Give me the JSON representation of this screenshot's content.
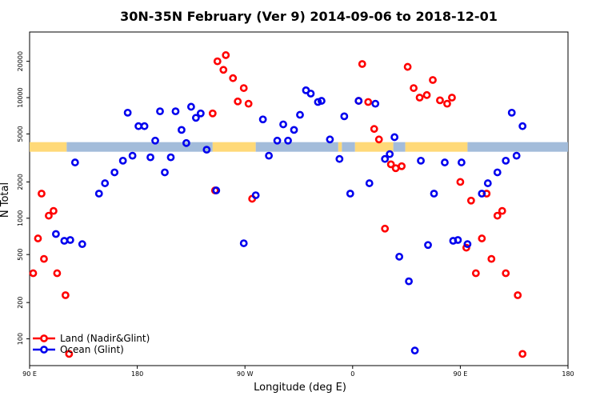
{
  "chart_data": {
    "type": "scatter",
    "title": "30N-35N February (Ver 9)   2014-09-06 to 2018-12-01",
    "xlabel": "Longitude (deg E)",
    "ylabel": "N Total",
    "y_scale": "log",
    "xlim": [
      90,
      540
    ],
    "ylim": [
      60,
      35000
    ],
    "x_ticks": [
      {
        "value": 90,
        "label": "90 E"
      },
      {
        "value": 180,
        "label": "180"
      },
      {
        "value": 270,
        "label": "90 W"
      },
      {
        "value": 360,
        "label": "0"
      },
      {
        "value": 450,
        "label": "90 E"
      },
      {
        "value": 540,
        "label": "180"
      }
    ],
    "y_ticks": [
      {
        "value": 100,
        "label": "100"
      },
      {
        "value": 200,
        "label": "200"
      },
      {
        "value": 500,
        "label": "500"
      },
      {
        "value": 1000,
        "label": "1000"
      },
      {
        "value": 2000,
        "label": "2000"
      },
      {
        "value": 5000,
        "label": "5000"
      },
      {
        "value": 10000,
        "label": "10000"
      },
      {
        "value": 20000,
        "label": "20000"
      }
    ],
    "legend": {
      "position": "bottom-left",
      "entries": [
        {
          "label": "Land (Nadir&Glint)",
          "color": "#ff0000"
        },
        {
          "label": "Ocean (Glint)",
          "color": "#0000ee"
        }
      ]
    },
    "band": {
      "y": 3900,
      "segments": [
        {
          "type": "land",
          "from": 90,
          "to": 121
        },
        {
          "type": "ocean",
          "from": 121,
          "to": 243
        },
        {
          "type": "land",
          "from": 243,
          "to": 279
        },
        {
          "type": "ocean",
          "from": 279,
          "to": 348
        },
        {
          "type": "land",
          "from": 348,
          "to": 351
        },
        {
          "type": "ocean",
          "from": 351,
          "to": 362
        },
        {
          "type": "land",
          "from": 362,
          "to": 394
        },
        {
          "type": "ocean",
          "from": 394,
          "to": 404
        },
        {
          "type": "land",
          "from": 404,
          "to": 456
        },
        {
          "type": "ocean",
          "from": 456,
          "to": 540
        }
      ],
      "colors": {
        "land": "#ffd978",
        "ocean": "#a3bcda"
      }
    },
    "series": [
      {
        "name": "Land (Nadir&Glint)",
        "color": "#ff0000",
        "points": [
          [
            93,
            350
          ],
          [
            97,
            680
          ],
          [
            100,
            1600
          ],
          [
            102,
            460
          ],
          [
            106,
            1050
          ],
          [
            110,
            1150
          ],
          [
            113,
            350
          ],
          [
            120,
            230
          ],
          [
            123,
            75
          ],
          [
            243,
            7400
          ],
          [
            245,
            1700
          ],
          [
            247,
            20000
          ],
          [
            252,
            17000
          ],
          [
            254,
            22500
          ],
          [
            260,
            14500
          ],
          [
            264,
            9300
          ],
          [
            269,
            12000
          ],
          [
            273,
            8900
          ],
          [
            276,
            1450
          ],
          [
            365,
            9400
          ],
          [
            368,
            19000
          ],
          [
            373,
            9200
          ],
          [
            378,
            5500
          ],
          [
            382,
            4500
          ],
          [
            387,
            820
          ],
          [
            392,
            2800
          ],
          [
            396,
            2600
          ],
          [
            401,
            2700
          ],
          [
            406,
            18000
          ],
          [
            411,
            12000
          ],
          [
            416,
            10000
          ],
          [
            422,
            10500
          ],
          [
            427,
            14000
          ],
          [
            433,
            9500
          ],
          [
            439,
            8900
          ],
          [
            443,
            10000
          ],
          [
            450,
            2000
          ],
          [
            455,
            570
          ],
          [
            459,
            1400
          ],
          [
            463,
            350
          ],
          [
            468,
            680
          ],
          [
            472,
            1600
          ],
          [
            476,
            460
          ],
          [
            481,
            1050
          ],
          [
            485,
            1150
          ],
          [
            488,
            350
          ],
          [
            498,
            230
          ],
          [
            502,
            75
          ]
        ]
      },
      {
        "name": "Ocean (Glint)",
        "color": "#0000ee",
        "points": [
          [
            112,
            740
          ],
          [
            119,
            650
          ],
          [
            124,
            660
          ],
          [
            128,
            2900
          ],
          [
            134,
            610
          ],
          [
            148,
            1600
          ],
          [
            153,
            1950
          ],
          [
            161,
            2400
          ],
          [
            168,
            3000
          ],
          [
            172,
            7500
          ],
          [
            176,
            3300
          ],
          [
            181,
            5800
          ],
          [
            186,
            5800
          ],
          [
            191,
            3200
          ],
          [
            195,
            4400
          ],
          [
            199,
            7700
          ],
          [
            203,
            2400
          ],
          [
            208,
            3200
          ],
          [
            212,
            7700
          ],
          [
            217,
            5400
          ],
          [
            221,
            4200
          ],
          [
            225,
            8400
          ],
          [
            229,
            6800
          ],
          [
            233,
            7400
          ],
          [
            238,
            3700
          ],
          [
            246,
            1700
          ],
          [
            269,
            620
          ],
          [
            279,
            1550
          ],
          [
            285,
            6600
          ],
          [
            290,
            3300
          ],
          [
            297,
            4400
          ],
          [
            302,
            6000
          ],
          [
            306,
            4400
          ],
          [
            311,
            5400
          ],
          [
            316,
            7200
          ],
          [
            321,
            11500
          ],
          [
            325,
            10800
          ],
          [
            331,
            9200
          ],
          [
            334,
            9400
          ],
          [
            341,
            4500
          ],
          [
            349,
            3100
          ],
          [
            353,
            7000
          ],
          [
            358,
            1600
          ],
          [
            365,
            9400
          ],
          [
            374,
            1950
          ],
          [
            379,
            8900
          ],
          [
            387,
            3100
          ],
          [
            391,
            3400
          ],
          [
            395,
            4700
          ],
          [
            399,
            480
          ],
          [
            407,
            300
          ],
          [
            412,
            80
          ],
          [
            417,
            3000
          ],
          [
            423,
            600
          ],
          [
            428,
            1600
          ],
          [
            437,
            2900
          ],
          [
            444,
            650
          ],
          [
            448,
            660
          ],
          [
            451,
            2900
          ],
          [
            456,
            610
          ],
          [
            468,
            1600
          ],
          [
            473,
            1950
          ],
          [
            481,
            2400
          ],
          [
            488,
            3000
          ],
          [
            493,
            7500
          ],
          [
            497,
            3300
          ],
          [
            502,
            5800
          ]
        ]
      }
    ]
  }
}
